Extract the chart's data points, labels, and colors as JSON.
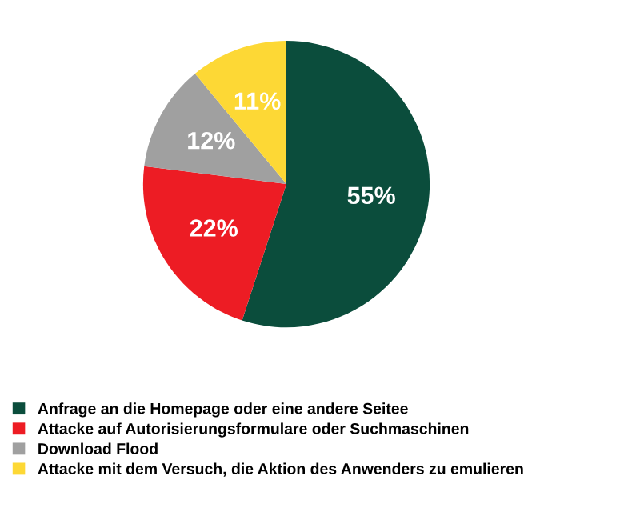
{
  "chart_data": {
    "type": "pie",
    "categories": [
      "Anfrage an die Homepage oder eine andere Seitee",
      "Attacke auf Autorisierungsformulare oder Suchmaschinen",
      "Download Flood",
      "Attacke mit dem Versuch, die Aktion des Anwenders zu emulieren"
    ],
    "values": [
      55,
      22,
      12,
      11
    ],
    "value_labels": [
      "55%",
      "22%",
      "12%",
      "11%"
    ],
    "colors": [
      "#0b4d3c",
      "#ed1c24",
      "#a0a0a0",
      "#fdd835"
    ],
    "legend": "bottom left"
  }
}
